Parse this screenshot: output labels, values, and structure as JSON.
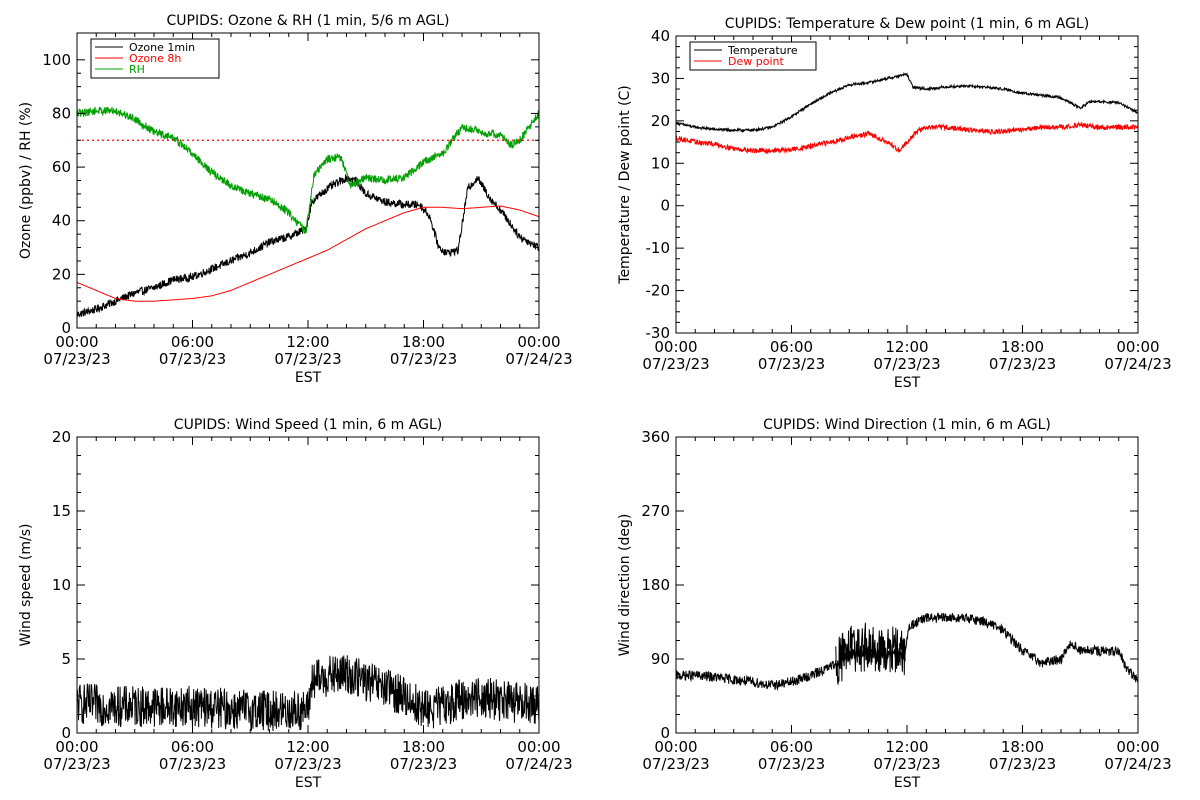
{
  "chart_data": [
    {
      "type": "line",
      "title": "CUPIDS: Ozone & RH (1 min, 5/6 m AGL)",
      "xlabel": "EST",
      "ylabel": "Ozone (ppbv) / RH (%)",
      "x_ticks": [
        {
          "time": "00:00",
          "date": "07/23/23"
        },
        {
          "time": "06:00",
          "date": "07/23/23"
        },
        {
          "time": "12:00",
          "date": "07/23/23"
        },
        {
          "time": "18:00",
          "date": "07/23/23"
        },
        {
          "time": "00:00",
          "date": "07/24/23"
        }
      ],
      "xlim_hours": [
        0,
        24
      ],
      "ylim": [
        0,
        110
      ],
      "y_ticks": [
        0,
        20,
        40,
        60,
        80,
        100
      ],
      "legend_position": "top-left",
      "series": [
        {
          "name": "Ozone 1min",
          "color": "#000000",
          "noise": 1.5,
          "points": [
            [
              0,
              5
            ],
            [
              1,
              7
            ],
            [
              2,
              10
            ],
            [
              3,
              13
            ],
            [
              4,
              15
            ],
            [
              5,
              18
            ],
            [
              6,
              19
            ],
            [
              7,
              22
            ],
            [
              8,
              25
            ],
            [
              9,
              28
            ],
            [
              10,
              32
            ],
            [
              11,
              34
            ],
            [
              11.9,
              37
            ],
            [
              12.2,
              47
            ],
            [
              13,
              52
            ],
            [
              14,
              56
            ],
            [
              14.5,
              55
            ],
            [
              15,
              50
            ],
            [
              16,
              47
            ],
            [
              17,
              46
            ],
            [
              17.8,
              46
            ],
            [
              18.3,
              42
            ],
            [
              18.8,
              30
            ],
            [
              19.2,
              28
            ],
            [
              19.8,
              29
            ],
            [
              20.3,
              52
            ],
            [
              20.8,
              56
            ],
            [
              21.5,
              48
            ],
            [
              22,
              44
            ],
            [
              23,
              34
            ],
            [
              24,
              30
            ]
          ]
        },
        {
          "name": "Ozone 8h",
          "color": "#ff0000",
          "noise": 0,
          "points": [
            [
              0,
              17
            ],
            [
              1,
              14
            ],
            [
              2,
              11
            ],
            [
              3,
              10
            ],
            [
              4,
              10
            ],
            [
              5,
              10.5
            ],
            [
              6,
              11
            ],
            [
              7,
              12
            ],
            [
              8,
              14
            ],
            [
              9,
              17
            ],
            [
              10,
              20
            ],
            [
              11,
              23
            ],
            [
              12,
              26
            ],
            [
              13,
              29
            ],
            [
              14,
              33
            ],
            [
              15,
              37
            ],
            [
              16,
              40
            ],
            [
              17,
              43
            ],
            [
              18,
              45
            ],
            [
              19,
              45
            ],
            [
              20,
              44.5
            ],
            [
              21,
              45
            ],
            [
              22,
              45.5
            ],
            [
              23,
              44
            ],
            [
              24,
              41.5
            ]
          ]
        },
        {
          "name": "RH",
          "color": "#00a000",
          "noise": 1.5,
          "points": [
            [
              0,
              80
            ],
            [
              1,
              81
            ],
            [
              2,
              81
            ],
            [
              3,
              78
            ],
            [
              4,
              73
            ],
            [
              5,
              71
            ],
            [
              6,
              65
            ],
            [
              7,
              58
            ],
            [
              8,
              53
            ],
            [
              9,
              50
            ],
            [
              10,
              48
            ],
            [
              11,
              43
            ],
            [
              11.9,
              36
            ],
            [
              12.3,
              57
            ],
            [
              13,
              63
            ],
            [
              13.7,
              64
            ],
            [
              14.2,
              53
            ],
            [
              15,
              56
            ],
            [
              16,
              55
            ],
            [
              17,
              56
            ],
            [
              18,
              62
            ],
            [
              19,
              65
            ],
            [
              20,
              75
            ],
            [
              21,
              73
            ],
            [
              22,
              72
            ],
            [
              22.5,
              68
            ],
            [
              23,
              70
            ],
            [
              24,
              80
            ]
          ]
        }
      ],
      "reference_lines": [
        {
          "y": 70,
          "color": "#ff0000",
          "style": "dotted"
        }
      ]
    },
    {
      "type": "line",
      "title": "CUPIDS: Temperature & Dew point (1 min, 6 m AGL)",
      "xlabel": "EST",
      "ylabel": "Temperature / Dew point (C)",
      "x_ticks": [
        {
          "time": "00:00",
          "date": "07/23/23"
        },
        {
          "time": "06:00",
          "date": "07/23/23"
        },
        {
          "time": "12:00",
          "date": "07/23/23"
        },
        {
          "time": "18:00",
          "date": "07/23/23"
        },
        {
          "time": "00:00",
          "date": "07/24/23"
        }
      ],
      "xlim_hours": [
        0,
        24
      ],
      "ylim": [
        -30,
        40
      ],
      "y_ticks": [
        -30,
        -20,
        -10,
        0,
        10,
        20,
        30,
        40
      ],
      "legend_position": "top-left",
      "series": [
        {
          "name": "Temperature",
          "color": "#000000",
          "noise": 0.3,
          "points": [
            [
              0,
              19.5
            ],
            [
              1,
              18.5
            ],
            [
              2,
              18
            ],
            [
              3,
              17.8
            ],
            [
              4,
              17.8
            ],
            [
              5,
              18.5
            ],
            [
              6,
              21
            ],
            [
              7,
              24
            ],
            [
              8,
              26.5
            ],
            [
              9,
              28.5
            ],
            [
              10,
              29
            ],
            [
              11,
              30
            ],
            [
              12,
              31
            ],
            [
              12.3,
              28
            ],
            [
              13,
              27.5
            ],
            [
              14,
              28
            ],
            [
              15,
              28.2
            ],
            [
              16,
              28
            ],
            [
              17,
              27.5
            ],
            [
              18,
              26.5
            ],
            [
              19,
              26
            ],
            [
              20,
              25.5
            ],
            [
              21,
              23
            ],
            [
              21.5,
              24.5
            ],
            [
              22,
              24.5
            ],
            [
              23,
              24.3
            ],
            [
              23.5,
              23
            ],
            [
              24,
              22
            ]
          ]
        },
        {
          "name": "Dew point",
          "color": "#ff0000",
          "noise": 0.6,
          "points": [
            [
              0,
              16
            ],
            [
              1,
              15
            ],
            [
              2,
              14.5
            ],
            [
              3,
              13.5
            ],
            [
              4,
              13
            ],
            [
              5,
              13
            ],
            [
              6,
              13.2
            ],
            [
              7,
              14
            ],
            [
              8,
              15
            ],
            [
              9,
              16
            ],
            [
              10,
              17
            ],
            [
              11,
              15
            ],
            [
              11.6,
              13
            ],
            [
              12,
              15
            ],
            [
              12.5,
              17.5
            ],
            [
              13,
              18.5
            ],
            [
              14,
              18.5
            ],
            [
              15,
              18
            ],
            [
              16,
              17.5
            ],
            [
              17,
              17.5
            ],
            [
              18,
              18
            ],
            [
              19,
              18.5
            ],
            [
              20,
              18.5
            ],
            [
              21,
              19
            ],
            [
              22,
              18.5
            ],
            [
              23,
              18.5
            ],
            [
              24,
              18.5
            ]
          ]
        }
      ]
    },
    {
      "type": "line",
      "title": "CUPIDS: Wind Speed (1 min, 6 m AGL)",
      "xlabel": "EST",
      "ylabel": "Wind speed (m/s)",
      "x_ticks": [
        {
          "time": "00:00",
          "date": "07/23/23"
        },
        {
          "time": "06:00",
          "date": "07/23/23"
        },
        {
          "time": "12:00",
          "date": "07/23/23"
        },
        {
          "time": "18:00",
          "date": "07/23/23"
        },
        {
          "time": "00:00",
          "date": "07/24/23"
        }
      ],
      "xlim_hours": [
        0,
        24
      ],
      "ylim": [
        0,
        20
      ],
      "y_ticks": [
        0,
        5,
        10,
        15,
        20
      ],
      "series": [
        {
          "color": "#000000",
          "noise": 1.4,
          "points": [
            [
              0,
              2
            ],
            [
              2,
              1.8
            ],
            [
              4,
              1.8
            ],
            [
              6,
              1.8
            ],
            [
              8,
              1.6
            ],
            [
              10,
              1.5
            ],
            [
              12,
              1.5
            ],
            [
              12.2,
              3.5
            ],
            [
              13,
              3.8
            ],
            [
              14,
              4
            ],
            [
              15,
              3.5
            ],
            [
              16,
              3
            ],
            [
              17,
              2.5
            ],
            [
              18,
              1.6
            ],
            [
              19,
              1.8
            ],
            [
              20,
              2.3
            ],
            [
              21,
              2.5
            ],
            [
              22,
              2.2
            ],
            [
              23,
              2
            ],
            [
              24,
              2
            ]
          ]
        }
      ]
    },
    {
      "type": "line",
      "title": "CUPIDS: Wind Direction (1 min, 6 m AGL)",
      "xlabel": "EST",
      "ylabel": "Wind direction (deg)",
      "x_ticks": [
        {
          "time": "00:00",
          "date": "07/23/23"
        },
        {
          "time": "06:00",
          "date": "07/23/23"
        },
        {
          "time": "12:00",
          "date": "07/23/23"
        },
        {
          "time": "18:00",
          "date": "07/23/23"
        },
        {
          "time": "00:00",
          "date": "07/24/23"
        }
      ],
      "xlim_hours": [
        0,
        24
      ],
      "ylim": [
        0,
        360
      ],
      "y_ticks": [
        0,
        90,
        180,
        270,
        360
      ],
      "series": [
        {
          "color": "#000000",
          "noise": 6,
          "points": [
            [
              0,
              70
            ],
            [
              1,
              70
            ],
            [
              2,
              68
            ],
            [
              3,
              65
            ],
            [
              4,
              62
            ],
            [
              5,
              58
            ],
            [
              6,
              62
            ],
            [
              7,
              70
            ],
            [
              8,
              80
            ],
            [
              9,
              95
            ],
            [
              10,
              100
            ],
            [
              11,
              95
            ],
            [
              11.9,
              95
            ],
            [
              12.1,
              130
            ],
            [
              13,
              140
            ],
            [
              14,
              140
            ],
            [
              15,
              140
            ],
            [
              16,
              136
            ],
            [
              17,
              125
            ],
            [
              18,
              100
            ],
            [
              19,
              85
            ],
            [
              20,
              90
            ],
            [
              20.5,
              110
            ],
            [
              21,
              100
            ],
            [
              22,
              100
            ],
            [
              23,
              98
            ],
            [
              23.5,
              75
            ],
            [
              24,
              65
            ]
          ]
        },
        {
          "color": "#000000",
          "noise": 30,
          "points": [
            [
              8.3,
              85
            ],
            [
              9,
              100
            ],
            [
              10,
              105
            ],
            [
              11,
              100
            ],
            [
              11.9,
              100
            ]
          ]
        }
      ]
    }
  ]
}
